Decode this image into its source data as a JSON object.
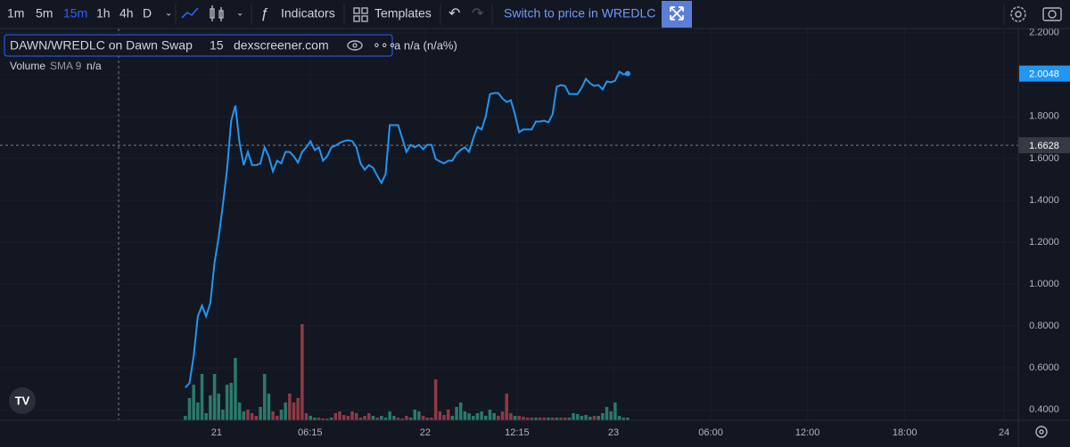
{
  "toolbar": {
    "intervals": [
      "1m",
      "5m",
      "15m",
      "1h",
      "4h",
      "D"
    ],
    "active_interval": 2,
    "indicators": "Indicators",
    "templates": "Templates",
    "switch": "Switch to price in WREDLC"
  },
  "chart_data": {
    "type": "line",
    "legend": {
      "symbol": "DAWN/WREDLC on Dawn Swap",
      "interval": "15",
      "source": "dexscreener.com",
      "change": "a  n/a (n/a%)",
      "volume": "Volume",
      "sma": "SMA 9",
      "sma_value": "n/a"
    },
    "x": [
      0,
      1,
      2,
      3,
      4,
      5,
      6,
      7,
      8,
      9,
      10,
      11,
      12,
      13,
      14,
      15,
      16,
      17,
      18,
      19,
      20,
      21,
      22,
      23,
      24,
      25,
      26,
      27,
      28,
      29,
      30,
      31,
      32,
      33,
      34,
      35,
      36,
      37,
      38,
      39,
      40,
      41,
      42,
      43,
      44,
      45,
      46,
      47,
      48,
      49,
      50,
      51,
      52,
      53,
      54,
      55,
      56,
      57,
      58,
      59,
      60,
      61,
      62,
      63,
      64,
      65,
      66,
      67,
      68,
      69,
      70,
      71,
      72,
      73,
      74,
      75,
      76,
      77,
      78,
      79,
      80,
      81,
      82,
      83,
      84,
      85,
      86,
      87,
      88,
      89,
      90,
      91,
      92,
      93,
      94,
      95,
      96,
      97,
      98,
      99,
      100,
      101,
      102,
      103,
      104,
      105,
      106
    ],
    "values": [
      0.506,
      0.527,
      0.655,
      0.846,
      0.897,
      0.846,
      0.91,
      1.101,
      1.224,
      1.377,
      1.546,
      1.78,
      1.852,
      1.674,
      1.568,
      1.631,
      1.568,
      1.568,
      1.576,
      1.653,
      1.61,
      1.538,
      1.589,
      1.576,
      1.631,
      1.631,
      1.61,
      1.58,
      1.631,
      1.653,
      1.682,
      1.64,
      1.653,
      1.589,
      1.61,
      1.653,
      1.661,
      1.674,
      1.682,
      1.687,
      1.682,
      1.653,
      1.576,
      1.546,
      1.568,
      1.555,
      1.517,
      1.483,
      1.525,
      1.759,
      1.759,
      1.759,
      1.695,
      1.631,
      1.665,
      1.653,
      1.665,
      1.644,
      1.665,
      1.665,
      1.597,
      1.585,
      1.576,
      1.589,
      1.589,
      1.623,
      1.64,
      1.653,
      1.631,
      1.695,
      1.75,
      1.738,
      1.801,
      1.907,
      1.912,
      1.912,
      1.886,
      1.869,
      1.878,
      1.81,
      1.725,
      1.738,
      1.738,
      1.738,
      1.776,
      1.776,
      1.78,
      1.772,
      1.81,
      1.942,
      1.95,
      1.946,
      1.907,
      1.907,
      1.907,
      1.938,
      1.98,
      1.958,
      1.946,
      1.95,
      1.929,
      1.967,
      1.963,
      1.971,
      2.014,
      2.001,
      2.0048
    ],
    "color": "#2196f3",
    "last_price": 2.0048,
    "crosshair_price": 1.6628,
    "volume": {
      "ylim": [
        0,
        440
      ],
      "values": [
        5,
        25,
        40,
        20,
        52,
        8,
        28,
        52,
        30,
        12,
        40,
        42,
        70,
        20,
        10,
        12,
        8,
        5,
        15,
        52,
        30,
        10,
        5,
        12,
        20,
        30,
        20,
        25,
        108,
        8,
        5,
        3,
        3,
        2,
        2,
        3,
        8,
        10,
        6,
        5,
        10,
        8,
        3,
        5,
        8,
        5,
        3,
        5,
        3,
        10,
        5,
        3,
        2,
        5,
        3,
        12,
        10,
        5,
        3,
        3,
        46,
        10,
        6,
        12,
        5,
        15,
        20,
        10,
        8,
        5,
        8,
        10,
        5,
        12,
        8,
        5,
        10,
        30,
        8,
        5,
        5,
        4,
        3,
        3,
        3,
        3,
        3,
        3,
        3,
        3,
        3,
        3,
        3,
        8,
        7,
        5,
        6,
        4,
        5,
        5,
        8,
        15,
        10,
        20,
        5,
        3,
        3
      ],
      "colors": [
        "#2a7a6b",
        "#2a7a6b",
        "#2a7a6b",
        "#2a7a6b",
        "#2a7a6b",
        "#2a7a6b",
        "#2a7a6b",
        "#2a7a6b",
        "#2a7a6b",
        "#2a7a6b",
        "#2a7a6b",
        "#2a7a6b",
        "#2a7a6b",
        "#2a7a6b",
        "#2a7a6b",
        "#8e3a46",
        "#8e3a46",
        "#8e3a46",
        "#2a7a6b",
        "#2a7a6b",
        "#2a7a6b",
        "#8e3a46",
        "#8e3a46",
        "#2a7a6b",
        "#2a7a6b",
        "#8e3a46",
        "#8e3a46",
        "#8e3a46",
        "#8e3a46",
        "#8e3a46",
        "#2a7a6b",
        "#2a7a6b",
        "#8e3a46",
        "#8e3a46",
        "#8e3a46",
        "#2a7a6b",
        "#8e3a46",
        "#8e3a46",
        "#8e3a46",
        "#8e3a46",
        "#8e3a46",
        "#8e3a46",
        "#8e3a46",
        "#8e3a46",
        "#8e3a46",
        "#2a7a6b",
        "#8e3a46",
        "#2a7a6b",
        "#2a7a6b",
        "#2a7a6b",
        "#2a7a6b",
        "#8e3a46",
        "#8e3a46",
        "#8e3a46",
        "#2a7a6b",
        "#2a7a6b",
        "#2a7a6b",
        "#8e3a46",
        "#8e3a46",
        "#8e3a46",
        "#8e3a46",
        "#8e3a46",
        "#8e3a46",
        "#8e3a46",
        "#2a7a6b",
        "#2a7a6b",
        "#2a7a6b",
        "#2a7a6b",
        "#2a7a6b",
        "#2a7a6b",
        "#2a7a6b",
        "#2a7a6b",
        "#2a7a6b",
        "#2a7a6b",
        "#2a7a6b",
        "#8e3a46",
        "#8e3a46",
        "#8e3a46",
        "#8e3a46",
        "#2a7a6b",
        "#8e3a46",
        "#8e3a46",
        "#8e3a46",
        "#8e3a46",
        "#2a7a6b",
        "#8e3a46",
        "#8e3a46",
        "#2a7a6b",
        "#8e3a46",
        "#2a7a6b",
        "#8e3a46",
        "#8e3a46",
        "#2a7a6b",
        "#2a7a6b",
        "#2a7a6b",
        "#2a7a6b",
        "#2a7a6b",
        "#2a7a6b",
        "#8e3a46",
        "#2a7a6b",
        "#2a7a6b",
        "#2a7a6b",
        "#2a7a6b",
        "#2a7a6b",
        "#2a7a6b",
        "#2a7a6b",
        "#2a7a6b"
      ]
    },
    "xlim": [
      -44.4,
      199.6
    ],
    "xticks": [
      {
        "value": 7.5,
        "label": "21"
      },
      {
        "value": 29.9,
        "label": "06:15"
      },
      {
        "value": 57.5,
        "label": "22"
      },
      {
        "value": 79.5,
        "label": "12:15"
      },
      {
        "value": 102.6,
        "label": "23"
      },
      {
        "value": 125.9,
        "label": "06:00"
      },
      {
        "value": 149.1,
        "label": "12:00"
      },
      {
        "value": 172.4,
        "label": "18:00"
      },
      {
        "value": 196.2,
        "label": "24"
      }
    ],
    "ylim": [
      0.35,
      2.22
    ],
    "yticks": [
      {
        "value": 0.4,
        "label": "0.4000"
      },
      {
        "value": 0.6,
        "label": "0.6000"
      },
      {
        "value": 0.8,
        "label": "0.8000"
      },
      {
        "value": 1.0,
        "label": "1.0000"
      },
      {
        "value": 1.2,
        "label": "1.2000"
      },
      {
        "value": 1.4,
        "label": "1.4000"
      },
      {
        "value": 1.6,
        "label": "1.6000"
      },
      {
        "value": 1.8,
        "label": "1.8000"
      },
      {
        "value": 2.0,
        "label": "2.0000"
      },
      {
        "value": 2.2,
        "label": "2.2000"
      }
    ],
    "grid": true
  }
}
